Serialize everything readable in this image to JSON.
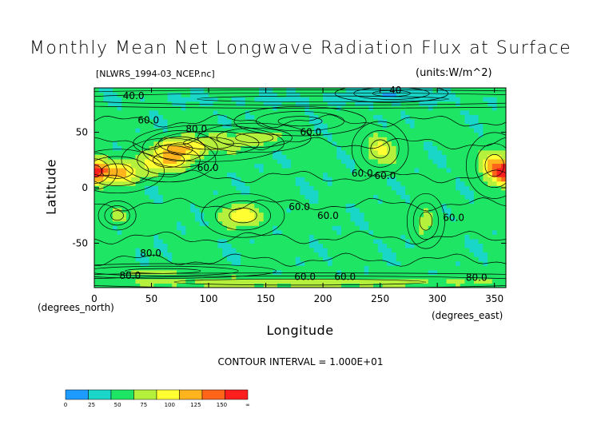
{
  "chart_data": {
    "type": "heatmap",
    "title": "Monthly Mean Net Longwave Radiation Flux at Surface",
    "subtitle": "[NLWRS_1994-03_NCEP.nc]",
    "units": "(units:W/m^2)",
    "xlabel": "Longitude",
    "ylabel": "Latitude",
    "x_unit": "(degrees_north)",
    "x_unit2": "(degrees_east)",
    "xlim": [
      0,
      360
    ],
    "ylim": [
      -90,
      90
    ],
    "x_ticks": [
      "0",
      "50",
      "100",
      "150",
      "200",
      "250",
      "300",
      "350"
    ],
    "y_ticks": [
      "50",
      "0",
      "-50"
    ],
    "contour_interval_text": "CONTOUR INTERVAL = 1.000E+01",
    "contour_labels": [
      "40.0",
      "60.0",
      "80.0",
      "60.0",
      "60.0",
      "60.0",
      "60.0",
      "60.0",
      "60.0",
      "60.0",
      "80.0",
      "60.0",
      "80.0",
      "60.0",
      "80.0",
      "40"
    ],
    "colorbar": {
      "levels": [
        "0",
        "25",
        "50",
        "75",
        "100",
        "125",
        "150",
        "∞"
      ],
      "colors": [
        "#1e9bff",
        "#19d6c8",
        "#1ee664",
        "#b4f03c",
        "#ffff32",
        "#ffb41e",
        "#ff6419",
        "#ff1e1e"
      ]
    },
    "regions": [
      {
        "lon": 0,
        "lat": 15,
        "rx": 12,
        "ry": 10,
        "value": 145
      },
      {
        "lon": 20,
        "lat": 15,
        "rx": 25,
        "ry": 12,
        "value": 130
      },
      {
        "lon": 65,
        "lat": 25,
        "rx": 25,
        "ry": 12,
        "value": 120
      },
      {
        "lon": 75,
        "lat": 35,
        "rx": 20,
        "ry": 10,
        "value": 105
      },
      {
        "lon": 100,
        "lat": 40,
        "rx": 40,
        "ry": 10,
        "value": 90
      },
      {
        "lon": 140,
        "lat": 45,
        "rx": 30,
        "ry": 8,
        "value": 85
      },
      {
        "lon": 250,
        "lat": 35,
        "rx": 15,
        "ry": 15,
        "value": 105
      },
      {
        "lon": 350,
        "lat": 20,
        "rx": 15,
        "ry": 18,
        "value": 120
      },
      {
        "lon": 130,
        "lat": -25,
        "rx": 22,
        "ry": 12,
        "value": 115
      },
      {
        "lon": 20,
        "lat": -25,
        "rx": 10,
        "ry": 8,
        "value": 95
      },
      {
        "lon": 290,
        "lat": -30,
        "rx": 10,
        "ry": 15,
        "value": 95
      },
      {
        "lon": 180,
        "lat": 60,
        "rx": 35,
        "ry": 8,
        "value": 55
      },
      {
        "lon": 180,
        "lat": -85,
        "rx": 200,
        "ry": 5,
        "value": 95
      },
      {
        "lon": 60,
        "lat": -75,
        "rx": 60,
        "ry": 4,
        "value": 80
      },
      {
        "lon": 200,
        "lat": 80,
        "rx": 200,
        "ry": 5,
        "value": 45
      },
      {
        "lon": 260,
        "lat": 85,
        "rx": 30,
        "ry": 5,
        "value": 20
      }
    ]
  }
}
